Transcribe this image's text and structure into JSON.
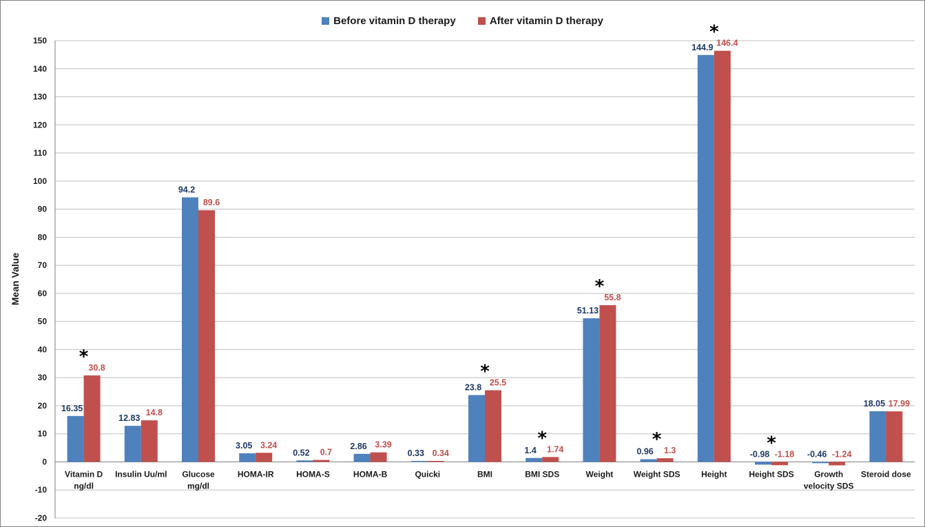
{
  "chart_data": {
    "type": "bar",
    "ylabel": "Mean Value",
    "ylim": [
      -20,
      150
    ],
    "ytick_step": 10,
    "grid": true,
    "legend_position": "top-center",
    "categories": [
      [
        "Vitamin D",
        "ng/dl"
      ],
      [
        "Insulin Uu/ml"
      ],
      [
        "Glucose",
        "mg/dl"
      ],
      [
        "HOMA-IR"
      ],
      [
        "HOMA-S"
      ],
      [
        "HOMA-B"
      ],
      [
        "Quicki"
      ],
      [
        "BMI"
      ],
      [
        "BMI SDS"
      ],
      [
        "Weight"
      ],
      [
        "Weight SDS"
      ],
      [
        "Height"
      ],
      [
        "Height SDS"
      ],
      [
        "Growth",
        "velocity SDS"
      ],
      [
        "Steroid dose"
      ]
    ],
    "series": [
      {
        "name": "Before vitamin D therapy",
        "color": "#4f81bd",
        "label_color": "#1f3864",
        "values": [
          16.35,
          12.83,
          94.2,
          3.05,
          0.52,
          2.86,
          0.33,
          23.8,
          1.4,
          51.13,
          0.96,
          144.9,
          -0.98,
          -0.46,
          18.05
        ],
        "labels": [
          "16.35",
          "12.83",
          "94.2",
          "3.05",
          "0.52",
          "2.86",
          "0.33",
          "23.8",
          "1.4",
          "51.13",
          "0.96",
          "144.9",
          "-0.98",
          "-0.46",
          "18.05"
        ]
      },
      {
        "name": "After vitamin D therapy",
        "color": "#c0504d",
        "label_color": "#c0504d",
        "values": [
          30.8,
          14.8,
          89.6,
          3.24,
          0.7,
          3.39,
          0.34,
          25.5,
          1.74,
          55.8,
          1.3,
          146.4,
          -1.18,
          -1.24,
          17.99
        ],
        "labels": [
          "30.8",
          "14.8",
          "89.6",
          "3.24",
          "0.7",
          "3.39",
          "0.34",
          "25.5",
          "1.74",
          "55.8",
          "1.3",
          "146.4",
          "-1.18",
          "-1.24",
          "17.99"
        ]
      }
    ],
    "significance_marker": "*",
    "significant_categories": [
      0,
      7,
      8,
      9,
      10,
      11,
      12
    ]
  }
}
